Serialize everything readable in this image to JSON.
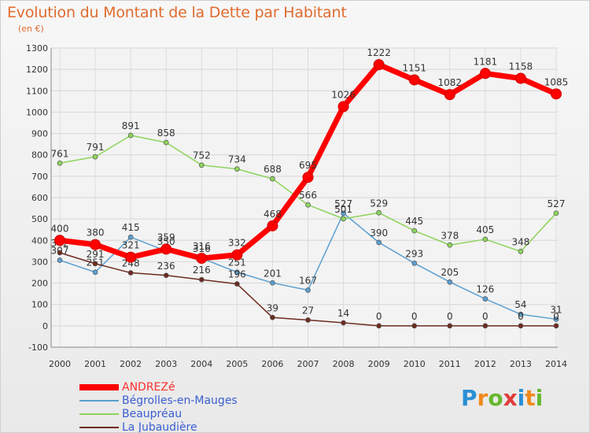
{
  "header": {
    "title": "Evolution du Montant de la Dette par Habitant",
    "subtitle": "(en €)"
  },
  "logo": {
    "text": "Proxiti"
  },
  "chart_data": {
    "type": "line",
    "title": "Evolution du Montant de la Dette par Habitant",
    "subtitle": "(en €)",
    "xlabel": "",
    "ylabel": "",
    "x": [
      2000,
      2001,
      2002,
      2003,
      2004,
      2005,
      2006,
      2007,
      2008,
      2009,
      2010,
      2011,
      2012,
      2013,
      2014
    ],
    "ylim": [
      -100,
      1300
    ],
    "yticks": [
      -100,
      0,
      100,
      200,
      300,
      400,
      500,
      600,
      700,
      800,
      900,
      1000,
      1100,
      1200,
      1300
    ],
    "grid": true,
    "legend_position": "bottom-left",
    "series": [
      {
        "name": "Bégrolles-en-Mauges",
        "color": "#5b9fd0",
        "values": [
          307,
          251,
          415,
          350,
          316,
          251,
          201,
          167,
          527,
          390,
          293,
          205,
          126,
          54,
          31
        ]
      },
      {
        "name": "Beaupréau",
        "color": "#8ed45b",
        "values": [
          761,
          791,
          891,
          858,
          752,
          734,
          688,
          566,
          501,
          529,
          445,
          378,
          405,
          348,
          527
        ]
      },
      {
        "name": "La Jubaudière",
        "color": "#6e2a20",
        "values": [
          342,
          291,
          248,
          236,
          216,
          196,
          39,
          27,
          14,
          0,
          0,
          0,
          0,
          0,
          0
        ]
      },
      {
        "name": "ANDREZé",
        "color": "#ff0000",
        "values": [
          400,
          380,
          321,
          359,
          316,
          332,
          468,
          695,
          1026,
          1222,
          1151,
          1082,
          1181,
          1158,
          1085
        ]
      }
    ]
  }
}
